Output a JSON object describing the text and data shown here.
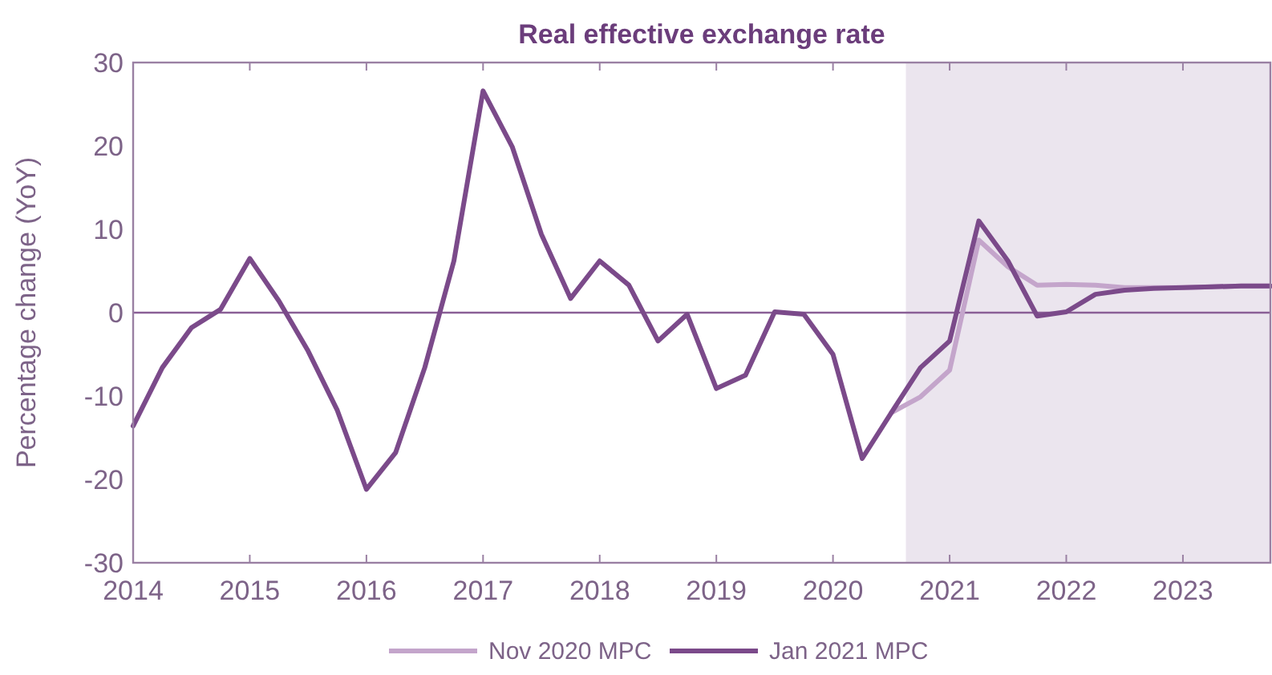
{
  "chart_data": {
    "type": "line",
    "title": "Real effective exchange rate",
    "ylabel": "Percentage change (YoY)",
    "xlim": [
      2014,
      2023.75
    ],
    "xticks": [
      2014,
      2015,
      2016,
      2017,
      2018,
      2019,
      2020,
      2021,
      2022,
      2023
    ],
    "ylim": [
      -30,
      30
    ],
    "yticks": [
      -30,
      -20,
      -10,
      0,
      10,
      20,
      30
    ],
    "grid": false,
    "legend": "bottom",
    "line_style": "solid",
    "marker": "none",
    "ref_lines": [
      {
        "axis": "y",
        "value": 0,
        "color": "#8a5f96"
      }
    ],
    "bands": [
      {
        "axis": "x",
        "from": 2020.625,
        "to": 2023.75,
        "color": "#ebe5ee"
      }
    ],
    "series": [
      {
        "name": "Nov 2020 MPC",
        "color": "#c4a5cb",
        "x": [
          2020.5,
          2020.75,
          2021,
          2021.25,
          2021.5,
          2021.75,
          2022,
          2022.25,
          2022.5,
          2022.75,
          2023,
          2023.25,
          2023.5,
          2023.75
        ],
        "values": [
          -12.0,
          -10.1,
          -6.9,
          8.7,
          5.5,
          3.3,
          3.4,
          3.3,
          3.0,
          3.0,
          3.0,
          3.1,
          3.2,
          3.2
        ]
      },
      {
        "name": "Jan 2021 MPC",
        "color": "#7b4a8a",
        "x": [
          2014,
          2014.25,
          2014.5,
          2014.75,
          2015,
          2015.25,
          2015.5,
          2015.75,
          2016,
          2016.25,
          2016.5,
          2016.75,
          2017,
          2017.25,
          2017.5,
          2017.75,
          2018,
          2018.25,
          2018.5,
          2018.75,
          2019,
          2019.25,
          2019.5,
          2019.75,
          2020,
          2020.25,
          2020.5,
          2020.75,
          2021,
          2021.25,
          2021.5,
          2021.75,
          2022,
          2022.25,
          2022.5,
          2022.75,
          2023,
          2023.25,
          2023.5,
          2023.75
        ],
        "values": [
          -13.6,
          -6.6,
          -1.8,
          0.4,
          6.5,
          1.4,
          -4.6,
          -11.7,
          -21.2,
          -16.8,
          -6.6,
          6.2,
          26.6,
          19.9,
          9.4,
          1.7,
          6.2,
          3.3,
          -3.4,
          -0.2,
          -9.1,
          -7.5,
          0.1,
          -0.2,
          -5.0,
          -17.5,
          -12.0,
          -6.6,
          -3.4,
          11.0,
          6.2,
          -0.4,
          0.1,
          2.2,
          2.7,
          2.9,
          3.0,
          3.1,
          3.2,
          3.2
        ]
      }
    ]
  }
}
